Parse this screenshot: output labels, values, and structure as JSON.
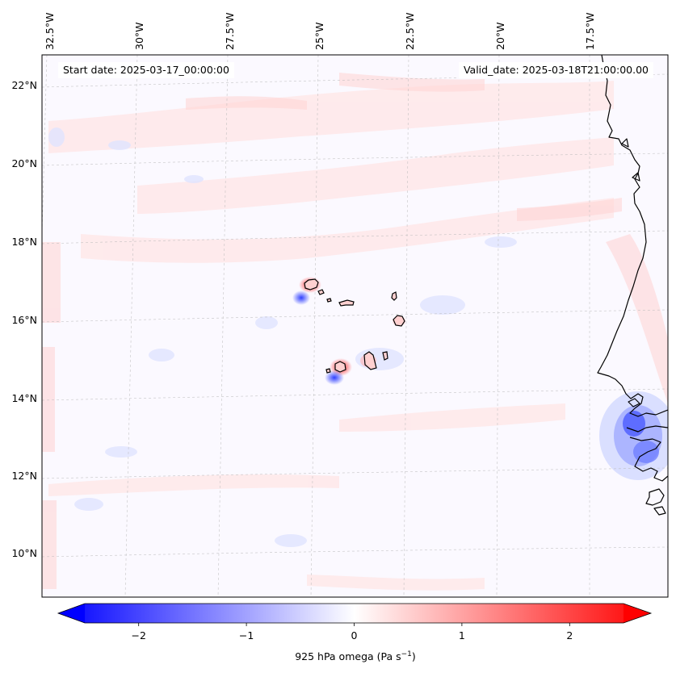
{
  "map": {
    "start_date_text": "Start date: 2025-03-17_00:00:00",
    "valid_date_text": "Valid_date: 2025-03-18T21:00:00.00",
    "longitude_labels": [
      "32.5°W",
      "30°W",
      "27.5°W",
      "25°W",
      "22.5°W",
      "20°W",
      "17.5°W"
    ],
    "latitude_labels": [
      "22°N",
      "20°N",
      "18°N",
      "16°N",
      "14°N",
      "12°N",
      "10°N"
    ],
    "gridlines": true,
    "coastline_color": "#000000"
  },
  "colorbar": {
    "label_prefix": "925 hPa omega (Pa s",
    "label_exponent": "−1",
    "label_suffix": ")",
    "tick_labels": [
      "−2",
      "−1",
      "0",
      "1",
      "2"
    ],
    "tick_values": [
      -2,
      -1,
      0,
      1,
      2
    ],
    "range": [
      -2.5,
      2.5
    ],
    "colormap": "bwr",
    "extend": "both",
    "low_color": "#0000ff",
    "mid_color": "#ffffff",
    "high_color": "#ff0000"
  }
}
